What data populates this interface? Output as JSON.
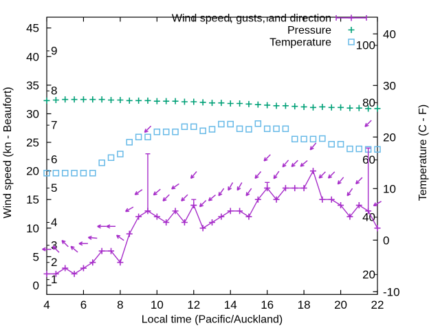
{
  "figure": {
    "background": "#ffffff",
    "frame_color": "#000000",
    "text_color": "#000000"
  },
  "chart_data": {
    "type": "line",
    "xlabel": "Local time (Pacific/Auckland)",
    "ylabel_left": "Wind speed (kn - Beaufort)",
    "ylabel_right": "Temperature (C - F)",
    "xlim": [
      4,
      22
    ],
    "x_major_ticks": [
      4,
      6,
      8,
      10,
      12,
      14,
      16,
      18,
      20,
      22
    ],
    "ylim_left_knots": [
      -1.6,
      46.9
    ],
    "left_major_ticks_knots": [
      0,
      5,
      10,
      15,
      20,
      25,
      30,
      35,
      40,
      45
    ],
    "beaufort_scale": [
      {
        "beaufort": "1",
        "knots": 1
      },
      {
        "beaufort": "2",
        "knots": 4
      },
      {
        "beaufort": "3",
        "knots": 7
      },
      {
        "beaufort": "4",
        "knots": 11
      },
      {
        "beaufort": "5",
        "knots": 17
      },
      {
        "beaufort": "6",
        "knots": 22
      },
      {
        "beaufort": "7",
        "knots": 28
      },
      {
        "beaufort": "8",
        "knots": 34
      },
      {
        "beaufort": "9",
        "knots": 41
      }
    ],
    "ylim_right_celsius": [
      -10.5,
      43.2
    ],
    "right_major_ticks_celsius": [
      -10,
      0,
      10,
      20,
      30,
      40
    ],
    "fahrenheit_scale_labels": [
      20,
      40,
      60,
      80,
      100
    ],
    "grid": false,
    "legend_position": "top-right-inside",
    "x": [
      4,
      4.5,
      5,
      5.5,
      6,
      6.5,
      7,
      7.5,
      8,
      8.5,
      9,
      9.5,
      10,
      10.5,
      11,
      11.5,
      12,
      12.5,
      13,
      13.5,
      14,
      14.5,
      15,
      15.5,
      16,
      16.5,
      17,
      17.5,
      18,
      18.5,
      19,
      19.5,
      20,
      20.5,
      21,
      21.5,
      22
    ],
    "series": [
      {
        "name": "Wind speed, gusts, and direction",
        "style": "errorbars-line-with-direction-arrows",
        "color": "#a62cc9",
        "speed_knots": [
          2,
          2,
          3,
          2,
          3,
          4,
          6,
          6,
          4,
          9,
          12,
          13,
          12,
          11,
          13,
          11,
          14,
          10,
          11,
          12,
          13,
          13,
          12,
          15,
          17,
          15,
          17,
          17,
          17,
          20,
          15,
          15,
          14,
          12,
          14,
          13,
          10
        ],
        "gust_knots": [
          2,
          2,
          3,
          2,
          3,
          4,
          6,
          6,
          4,
          9,
          12,
          23,
          12,
          11,
          13,
          11,
          15,
          10,
          11,
          12,
          13,
          13,
          12,
          15,
          18,
          15,
          17,
          17,
          17,
          20,
          15,
          15,
          14,
          12,
          14,
          24,
          10
        ],
        "arrow_direction_deg_math": [
          180,
          135,
          135,
          140,
          180,
          175,
          180,
          180,
          145,
          210,
          215,
          225,
          220,
          225,
          215,
          225,
          230,
          225,
          220,
          235,
          240,
          240,
          235,
          230,
          225,
          235,
          230,
          225,
          220,
          230,
          225,
          225,
          230,
          235,
          225,
          225,
          210
        ],
        "arrow_offset_above_knots": 4.3
      },
      {
        "name": "Pressure",
        "style": "points-plus",
        "color": "#00a077",
        "values_plot_units_knots_axis": [
          32.3,
          32.4,
          32.5,
          32.5,
          32.5,
          32.5,
          32.5,
          32.4,
          32.4,
          32.3,
          32.3,
          32.3,
          32.2,
          32.2,
          32.2,
          32.1,
          32.1,
          32.0,
          31.9,
          31.9,
          31.8,
          31.8,
          31.7,
          31.6,
          31.5,
          31.4,
          31.4,
          31.3,
          31.2,
          31.1,
          31.2,
          31.1,
          31.1,
          31.0,
          31.0,
          30.9,
          30.9
        ]
      },
      {
        "name": "Temperature",
        "style": "points-open-square",
        "color": "#66b9e7",
        "values_celsius": [
          13,
          13,
          13,
          13,
          13,
          13,
          15,
          16,
          16.7,
          19,
          20,
          20,
          21,
          21,
          21,
          22,
          22,
          21.2,
          21.5,
          22.5,
          22.5,
          21.6,
          21.5,
          22.6,
          21.6,
          21.6,
          21.6,
          19.6,
          19.6,
          19.6,
          19.7,
          18.6,
          18.6,
          17.7,
          17.7,
          17.6,
          17.6
        ]
      }
    ]
  }
}
